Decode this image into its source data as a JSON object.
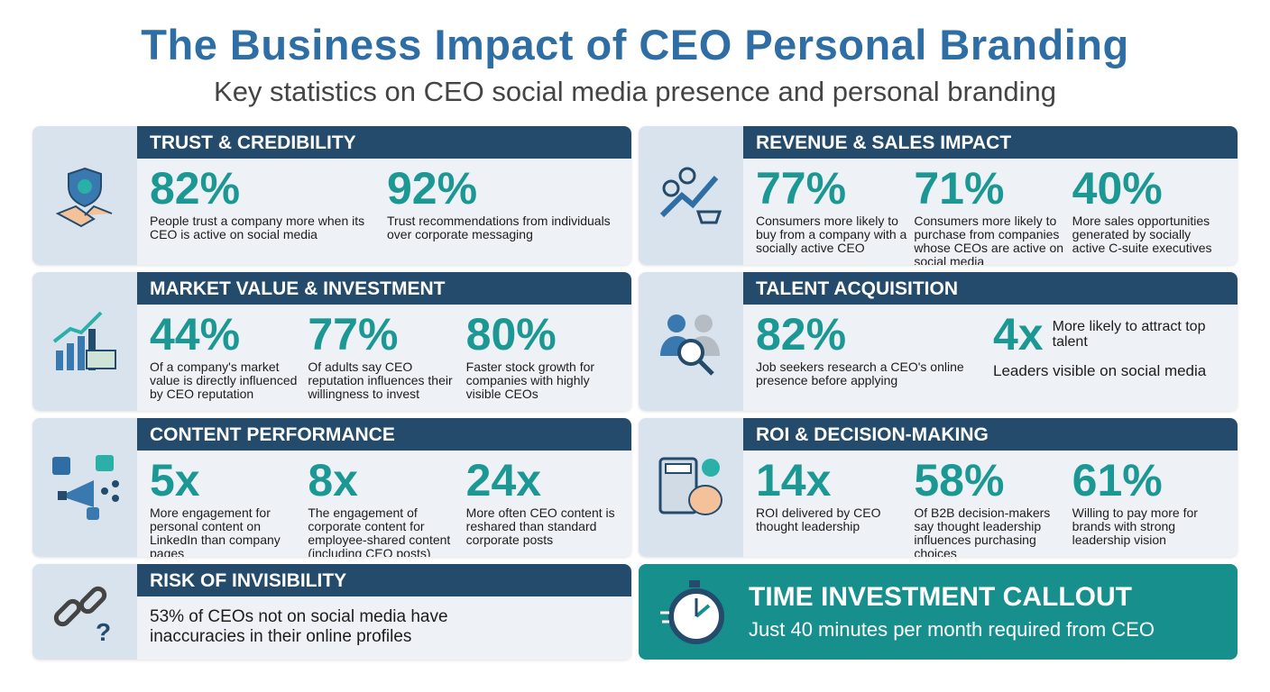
{
  "title": "The Business Impact of CEO Personal Branding",
  "subtitle": "Key statistics on CEO social media presence and personal branding",
  "colors": {
    "title": "#2e6ea4",
    "header": "#244b6c",
    "accent": "#1c9894",
    "callout": "#168f8d"
  },
  "cards": [
    {
      "heading": "TRUST & CREDIBILITY",
      "icon": "shield-handshake-icon",
      "stats": [
        {
          "value": "82%",
          "text": "People trust a company more when its CEO is active on social media"
        },
        {
          "value": "92%",
          "text": "Trust recommendations from individuals over corporate messaging"
        }
      ]
    },
    {
      "heading": "REVENUE & SALES IMPACT",
      "icon": "growth-cart-icon",
      "stats": [
        {
          "value": "77%",
          "text": "Consumers more likely to buy from a company with a socially active CEO"
        },
        {
          "value": "71%",
          "text": "Consumers more likely to purchase from companies whose CEOs are active on social media"
        },
        {
          "value": "40%",
          "text": "More sales opportunities generated by socially active C-suite executives"
        }
      ]
    },
    {
      "heading": "MARKET VALUE & INVESTMENT",
      "icon": "bar-chart-money-icon",
      "stats": [
        {
          "value": "44%",
          "text": "Of a company's market value is directly influenced by CEO reputation"
        },
        {
          "value": "77%",
          "text": "Of adults say CEO reputation influences their willingness to invest"
        },
        {
          "value": "80%",
          "text": "Faster stock growth for companies with highly visible CEOs"
        }
      ]
    },
    {
      "heading": "TALENT ACQUISITION",
      "icon": "people-search-icon",
      "stats": [
        {
          "value": "82%",
          "text": "Job seekers research a CEO's online presence before applying"
        },
        {
          "value": "4x",
          "side": "More likely to attract top talent",
          "text": "Leaders visible on social media"
        }
      ]
    },
    {
      "heading": "CONTENT PERFORMANCE",
      "icon": "megaphone-share-icon",
      "stats": [
        {
          "value": "5x",
          "text": "More engagement for personal content on LinkedIn than company pages"
        },
        {
          "value": "8x",
          "text": "The engagement of corporate content for employee-shared content (including CEO posts)"
        },
        {
          "value": "24x",
          "text": "More often CEO content is reshared than standard corporate posts"
        }
      ]
    },
    {
      "heading": "ROI & DECISION-MAKING",
      "icon": "calculator-brain-icon",
      "stats": [
        {
          "value": "14x",
          "text": "ROI delivered by CEO thought leadership"
        },
        {
          "value": "58%",
          "text": "Of B2B decision-makers say thought leadership influences purchasing choices"
        },
        {
          "value": "61%",
          "text": "Willing to pay more for brands with strong leadership vision"
        }
      ]
    },
    {
      "heading": "RISK OF INVISIBILITY",
      "icon": "broken-link-icon",
      "stats": [
        {
          "text": "53% of CEOs not on social media have inaccuracies in their online profiles"
        }
      ]
    }
  ],
  "callout": {
    "heading": "TIME INVESTMENT CALLOUT",
    "text": "Just 40 minutes per month required from CEO",
    "icon": "stopwatch-icon"
  }
}
